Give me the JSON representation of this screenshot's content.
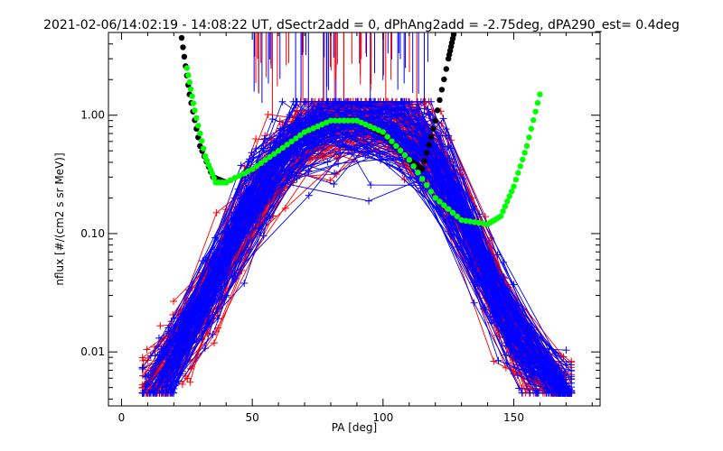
{
  "chart_data": {
    "type": "scatter",
    "title": "2021-02-06/14:02:19 - 14:08:22 UT, dSectr2add = 0, dPhAng2add = -2.75deg, dPA290_est=   0.4deg",
    "xlabel": "PA [deg]",
    "ylabel": "nflux [#/(cm2 s sr MeV)]",
    "xlim": [
      -5,
      183
    ],
    "ylim": [
      0.0035,
      5.0
    ],
    "yscale": "log",
    "grid": false,
    "x_ticks": [
      0,
      50,
      100,
      150
    ],
    "y_ticks": [
      0.01,
      0.1,
      1.0
    ],
    "x_tick_labels": [
      "0",
      "50",
      "100",
      "150"
    ],
    "y_tick_labels": [
      "0.01",
      "0.10",
      "1.00"
    ],
    "series": [
      {
        "color": "#ff0000",
        "marker": "plus",
        "style": "lines+markers",
        "count": 110
      },
      {
        "color": "#0000ff",
        "marker": "plus",
        "style": "lines+markers",
        "count": 110
      },
      {
        "color": "#000000",
        "style": "dots",
        "x": [
          23,
          26,
          30,
          35,
          40,
          50,
          60,
          70,
          80,
          90,
          100,
          110,
          115,
          120,
          125,
          127
        ],
        "y": [
          4.5,
          1.5,
          0.55,
          0.3,
          0.27,
          0.35,
          0.5,
          0.72,
          0.9,
          0.9,
          0.7,
          0.42,
          0.35,
          0.9,
          3.0,
          4.8
        ]
      },
      {
        "color": "#00ff00",
        "style": "dots",
        "x": [
          25,
          28,
          32,
          36,
          40,
          50,
          60,
          70,
          80,
          90,
          100,
          110,
          120,
          130,
          140,
          145,
          150,
          155,
          160
        ],
        "y": [
          2.5,
          1.1,
          0.45,
          0.27,
          0.27,
          0.35,
          0.5,
          0.72,
          0.9,
          0.9,
          0.72,
          0.42,
          0.2,
          0.13,
          0.12,
          0.14,
          0.25,
          0.55,
          1.5
        ]
      }
    ],
    "vertical_bars": {
      "color_a": "#ff0000",
      "color_b": "#0000ff",
      "x_range": [
        50,
        118
      ]
    }
  }
}
